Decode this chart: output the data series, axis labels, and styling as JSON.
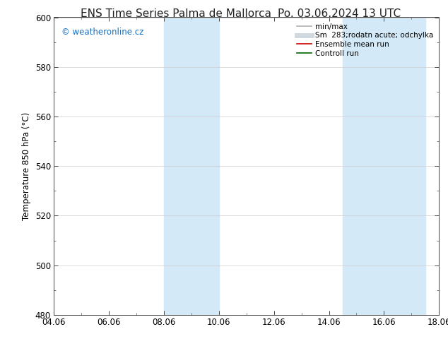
{
  "title_left": "ENS Time Series Palma de Mallorca",
  "title_right": "Po. 03.06.2024 13 UTC",
  "ylabel": "Temperature 850 hPa (°C)",
  "ylim": [
    480,
    600
  ],
  "yticks": [
    480,
    500,
    520,
    540,
    560,
    580,
    600
  ],
  "xticks_labels": [
    "04.06",
    "06.06",
    "08.06",
    "10.06",
    "12.06",
    "14.06",
    "16.06",
    "18.06"
  ],
  "xticks_values": [
    0,
    2,
    4,
    6,
    8,
    10,
    12,
    14
  ],
  "xlim": [
    0,
    14
  ],
  "shaded_bands": [
    {
      "x_start": 4.0,
      "x_end": 6.0
    },
    {
      "x_start": 10.5,
      "x_end": 13.5
    }
  ],
  "shade_color": "#d3e9f7",
  "background_color": "#ffffff",
  "watermark_text": "© weatheronline.cz",
  "watermark_color": "#1a6fbf",
  "legend_entries": [
    {
      "label": "min/max",
      "color": "#b0b0b0",
      "lw": 1.2,
      "style": "solid"
    },
    {
      "label": "Sm  283;rodatn acute; odchylka",
      "color": "#d0d8e0",
      "lw": 5,
      "style": "solid"
    },
    {
      "label": "Ensemble mean run",
      "color": "#cc0000",
      "lw": 1.2,
      "style": "solid"
    },
    {
      "label": "Controll run",
      "color": "#006600",
      "lw": 1.2,
      "style": "solid"
    }
  ],
  "title_fontsize": 11,
  "tick_fontsize": 8.5,
  "legend_fontsize": 7.5,
  "ylabel_fontsize": 8.5
}
